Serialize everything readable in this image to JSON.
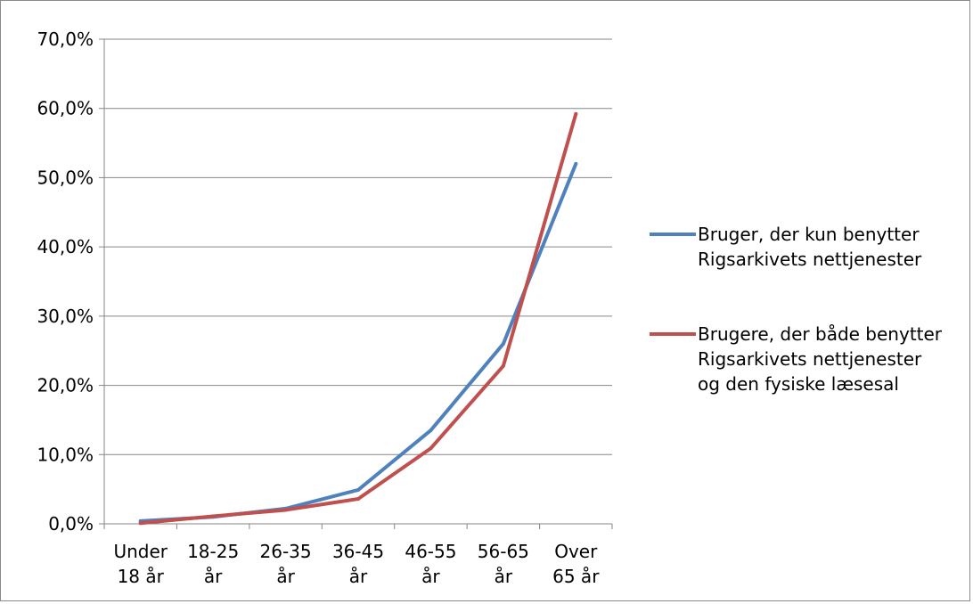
{
  "chart_data": {
    "type": "line",
    "categories": [
      [
        "Under",
        "18 år"
      ],
      [
        "18-25",
        "år"
      ],
      [
        "26-35",
        "år"
      ],
      [
        "36-45",
        "år"
      ],
      [
        "46-55",
        "år"
      ],
      [
        "56-65",
        "år"
      ],
      [
        "Over",
        "65 år"
      ]
    ],
    "series": [
      {
        "name": "Bruger, der kun benytter Rigsarkivets nettjenester",
        "legend_lines": [
          "Bruger, der kun benytter",
          "Rigsarkivets nettjenester"
        ],
        "color": "#4f81bd",
        "values": [
          0.4,
          1.0,
          2.2,
          4.9,
          13.5,
          26.0,
          52.0
        ]
      },
      {
        "name": "Brugere, der både benytter Rigsarkivets nettjenester og den fysiske læsesal",
        "legend_lines": [
          "Brugere, der både benytter",
          "Rigsarkivets nettjenester",
          "og den fysiske læsesal"
        ],
        "color": "#c0504d",
        "values": [
          0.1,
          1.1,
          2.0,
          3.6,
          10.9,
          22.8,
          59.2
        ]
      }
    ],
    "y_ticks": [
      "0,0%",
      "10,0%",
      "20,0%",
      "30,0%",
      "40,0%",
      "50,0%",
      "60,0%",
      "70,0%"
    ],
    "ylim": [
      0,
      70
    ],
    "grid": true,
    "legend_position": "right",
    "title": "",
    "xlabel": "",
    "ylabel": ""
  }
}
